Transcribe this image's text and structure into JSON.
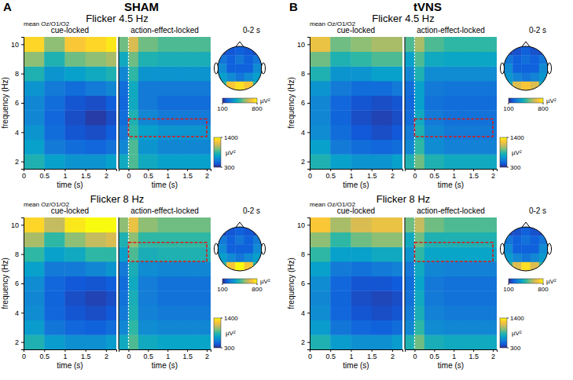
{
  "chart_data": [
    {
      "type": "heatmap",
      "panel": "A",
      "condition": "SHAM",
      "title": "Flicker 4.5 Hz",
      "channel_label": "mean Oz/O1/O2",
      "y_label": "frequency (Hz)",
      "ylim": [
        1.5,
        10.5
      ],
      "yticks": [
        2,
        4,
        6,
        8,
        10
      ],
      "frequencies": [
        2,
        3,
        4,
        5,
        6,
        7,
        8,
        9,
        10
      ],
      "cue": {
        "title": "cue-locked",
        "x_label": "time (s)",
        "xlim": [
          0,
          2.25
        ],
        "xticks": [
          0,
          0.5,
          1,
          1.5,
          2
        ],
        "x_edges": [
          0,
          0.5,
          1,
          1.5,
          2,
          2.25
        ],
        "z": [
          [
            800,
            700,
            650,
            650,
            700
          ],
          [
            700,
            550,
            500,
            480,
            520
          ],
          [
            650,
            500,
            420,
            400,
            450
          ],
          [
            600,
            480,
            400,
            350,
            400
          ],
          [
            600,
            500,
            420,
            400,
            450
          ],
          [
            650,
            550,
            500,
            550,
            600
          ],
          [
            800,
            650,
            700,
            750,
            800
          ],
          [
            1000,
            800,
            950,
            1000,
            1050
          ],
          [
            1300,
            1000,
            1250,
            1300,
            1350
          ]
        ]
      },
      "action": {
        "title": "action-effect-locked",
        "x_label": "time (s)",
        "xlim": [
          -0.25,
          2.1
        ],
        "xticks": [
          0,
          0.5,
          1,
          1.5,
          2
        ],
        "x_edges": [
          -0.25,
          0,
          0.25,
          0.75,
          1.25,
          1.75,
          2.1
        ],
        "onset": 0,
        "z": [
          [
            750,
            900,
            750,
            700,
            700,
            700
          ],
          [
            600,
            900,
            650,
            600,
            600,
            600
          ],
          [
            550,
            850,
            700,
            650,
            650,
            650
          ],
          [
            500,
            800,
            600,
            550,
            550,
            550
          ],
          [
            480,
            750,
            550,
            500,
            500,
            500
          ],
          [
            500,
            750,
            550,
            550,
            550,
            550
          ],
          [
            600,
            850,
            650,
            650,
            650,
            650
          ],
          [
            750,
            950,
            800,
            780,
            780,
            780
          ],
          [
            950,
            1150,
            950,
            900,
            900,
            900
          ]
        ],
        "roi": {
          "x": [
            0,
            2
          ],
          "y": [
            3.7,
            4.9
          ]
        }
      },
      "colorbar": {
        "range": [
          300,
          1400
        ],
        "ticks": [
          300,
          1400
        ],
        "label": "µV²"
      },
      "topo": {
        "title": "0-2 s",
        "z": [
          [
            150,
            180,
            200,
            180,
            150
          ],
          [
            250,
            200,
            250,
            200,
            250
          ],
          [
            300,
            200,
            200,
            200,
            300
          ],
          [
            350,
            300,
            250,
            300,
            350
          ],
          [
            450,
            700,
            750,
            700,
            450
          ]
        ],
        "colorbar": {
          "range": [
            100,
            800
          ],
          "ticks": [
            100,
            800
          ],
          "label": "µV²"
        }
      }
    },
    {
      "type": "heatmap",
      "panel": "B",
      "condition": "tVNS",
      "title": "Flicker 4.5 Hz",
      "channel_label": "mean Oz/O1/O2",
      "y_label": "frequency (Hz)",
      "ylim": [
        1.5,
        10.5
      ],
      "yticks": [
        2,
        4,
        6,
        8,
        10
      ],
      "frequencies": [
        2,
        3,
        4,
        5,
        6,
        7,
        8,
        9,
        10
      ],
      "cue": {
        "title": "cue-locked",
        "x_label": "time (s)",
        "xlim": [
          0,
          2.25
        ],
        "xticks": [
          0,
          0.5,
          1,
          1.5,
          2
        ],
        "x_edges": [
          0,
          0.5,
          1,
          1.5,
          2,
          2.25
        ],
        "z": [
          [
            800,
            700,
            650,
            650,
            700
          ],
          [
            700,
            550,
            500,
            480,
            500
          ],
          [
            620,
            500,
            430,
            400,
            430
          ],
          [
            600,
            470,
            400,
            370,
            400
          ],
          [
            600,
            480,
            420,
            400,
            420
          ],
          [
            650,
            550,
            500,
            500,
            550
          ],
          [
            800,
            650,
            650,
            700,
            700
          ],
          [
            950,
            800,
            850,
            900,
            900
          ],
          [
            1200,
            950,
            1000,
            1050,
            1050
          ]
        ]
      },
      "action": {
        "title": "action-effect-locked",
        "x_label": "time (s)",
        "xlim": [
          -0.25,
          2.1
        ],
        "xticks": [
          0,
          0.5,
          1,
          1.5,
          2
        ],
        "x_edges": [
          -0.25,
          0,
          0.25,
          0.75,
          1.25,
          1.75,
          2.1
        ],
        "onset": 0,
        "z": [
          [
            800,
            950,
            800,
            750,
            750,
            750
          ],
          [
            600,
            850,
            620,
            580,
            580,
            580
          ],
          [
            550,
            800,
            600,
            550,
            550,
            550
          ],
          [
            500,
            750,
            550,
            520,
            520,
            520
          ],
          [
            480,
            700,
            520,
            500,
            500,
            500
          ],
          [
            500,
            700,
            550,
            530,
            530,
            530
          ],
          [
            600,
            800,
            620,
            620,
            620,
            620
          ],
          [
            700,
            900,
            750,
            730,
            730,
            730
          ],
          [
            900,
            1050,
            900,
            850,
            850,
            850
          ]
        ],
        "roi": {
          "x": [
            0,
            2
          ],
          "y": [
            3.7,
            4.9
          ]
        }
      },
      "colorbar": {
        "range": [
          300,
          1400
        ],
        "ticks": [
          300,
          1400
        ],
        "label": "µV²"
      },
      "topo": {
        "title": "0-2 s",
        "z": [
          [
            150,
            170,
            200,
            170,
            150
          ],
          [
            250,
            200,
            230,
            200,
            250
          ],
          [
            300,
            200,
            200,
            200,
            300
          ],
          [
            330,
            280,
            250,
            280,
            330
          ],
          [
            400,
            650,
            700,
            650,
            400
          ]
        ],
        "colorbar": {
          "range": [
            100,
            800
          ],
          "ticks": [
            100,
            800
          ],
          "label": "µV²"
        }
      }
    },
    {
      "type": "heatmap",
      "title": "Flicker 8 Hz",
      "channel_label": "mean Oz/O1/O2",
      "y_label": "frequency (Hz)",
      "ylim": [
        1.5,
        10.5
      ],
      "yticks": [
        2,
        4,
        6,
        8,
        10
      ],
      "frequencies": [
        2,
        3,
        4,
        5,
        6,
        7,
        8,
        9,
        10
      ],
      "cue": {
        "title": "cue-locked",
        "x_label": "time (s)",
        "xlim": [
          0,
          2.25
        ],
        "xticks": [
          0,
          0.5,
          1,
          1.5,
          2
        ],
        "x_edges": [
          0,
          0.5,
          1,
          1.5,
          2,
          2.25
        ],
        "z": [
          [
            800,
            680,
            630,
            630,
            680
          ],
          [
            680,
            530,
            480,
            460,
            500
          ],
          [
            620,
            480,
            420,
            400,
            430
          ],
          [
            600,
            470,
            400,
            370,
            400
          ],
          [
            620,
            480,
            430,
            420,
            450
          ],
          [
            700,
            550,
            550,
            600,
            650
          ],
          [
            850,
            700,
            750,
            850,
            850
          ],
          [
            1050,
            850,
            1000,
            1100,
            1150
          ],
          [
            1300,
            1100,
            1350,
            1400,
            1400
          ]
        ]
      },
      "action": {
        "title": "action-effect-locked",
        "x_label": "time (s)",
        "xlim": [
          -0.25,
          2.1
        ],
        "xticks": [
          0,
          0.5,
          1,
          1.5,
          2
        ],
        "x_edges": [
          -0.25,
          0,
          0.25,
          0.75,
          1.25,
          1.75,
          2.1
        ],
        "onset": 0,
        "z": [
          [
            750,
            900,
            750,
            720,
            720,
            720
          ],
          [
            600,
            850,
            620,
            600,
            600,
            600
          ],
          [
            550,
            800,
            580,
            550,
            550,
            550
          ],
          [
            520,
            780,
            560,
            520,
            520,
            520
          ],
          [
            500,
            750,
            560,
            520,
            520,
            520
          ],
          [
            550,
            780,
            620,
            600,
            600,
            600
          ],
          [
            700,
            900,
            780,
            800,
            800,
            800
          ],
          [
            800,
            1000,
            850,
            850,
            850,
            850
          ],
          [
            1000,
            1200,
            1000,
            950,
            950,
            950
          ]
        ],
        "roi": {
          "x": [
            0,
            2
          ],
          "y": [
            7.5,
            8.8
          ]
        }
      },
      "colorbar": {
        "range": [
          300,
          1400
        ],
        "ticks": [
          300,
          1400
        ],
        "label": "µV²"
      },
      "topo": {
        "title": "0-2 s",
        "z": [
          [
            150,
            180,
            200,
            180,
            150
          ],
          [
            260,
            200,
            250,
            200,
            260
          ],
          [
            300,
            200,
            200,
            200,
            300
          ],
          [
            350,
            300,
            250,
            300,
            350
          ],
          [
            450,
            700,
            800,
            700,
            450
          ]
        ],
        "colorbar": {
          "range": [
            100,
            800
          ],
          "ticks": [
            100,
            800
          ],
          "label": "µV²"
        }
      }
    },
    {
      "type": "heatmap",
      "title": "Flicker 8 Hz",
      "channel_label": "mean Oz/O1/O2",
      "y_label": "frequency (Hz)",
      "ylim": [
        1.5,
        10.5
      ],
      "yticks": [
        2,
        4,
        6,
        8,
        10
      ],
      "frequencies": [
        2,
        3,
        4,
        5,
        6,
        7,
        8,
        9,
        10
      ],
      "cue": {
        "title": "cue-locked",
        "x_label": "time (s)",
        "xlim": [
          0,
          2.25
        ],
        "xticks": [
          0,
          0.5,
          1,
          1.5,
          2
        ],
        "x_edges": [
          0,
          0.5,
          1,
          1.5,
          2,
          2.25
        ],
        "z": [
          [
            800,
            680,
            630,
            630,
            680
          ],
          [
            680,
            530,
            480,
            460,
            500
          ],
          [
            620,
            480,
            420,
            400,
            420
          ],
          [
            600,
            470,
            400,
            380,
            400
          ],
          [
            620,
            480,
            420,
            420,
            440
          ],
          [
            700,
            550,
            520,
            550,
            580
          ],
          [
            850,
            700,
            700,
            750,
            750
          ],
          [
            1000,
            850,
            950,
            1000,
            1000
          ],
          [
            1250,
            1050,
            1150,
            1200,
            1200
          ]
        ]
      },
      "action": {
        "title": "action-effect-locked",
        "x_label": "time (s)",
        "xlim": [
          -0.25,
          2.1
        ],
        "xticks": [
          0,
          0.5,
          1,
          1.5,
          2
        ],
        "x_edges": [
          -0.25,
          0,
          0.25,
          0.75,
          1.25,
          1.75,
          2.1
        ],
        "onset": 0,
        "z": [
          [
            800,
            950,
            780,
            750,
            750,
            750
          ],
          [
            600,
            850,
            620,
            600,
            600,
            600
          ],
          [
            550,
            780,
            580,
            550,
            550,
            550
          ],
          [
            520,
            750,
            550,
            520,
            520,
            520
          ],
          [
            500,
            720,
            540,
            520,
            520,
            520
          ],
          [
            540,
            750,
            600,
            580,
            580,
            580
          ],
          [
            650,
            850,
            720,
            720,
            720,
            720
          ],
          [
            750,
            950,
            800,
            800,
            800,
            800
          ],
          [
            950,
            1100,
            950,
            900,
            900,
            900
          ]
        ],
        "roi": {
          "x": [
            0,
            2
          ],
          "y": [
            7.5,
            8.8
          ]
        }
      },
      "colorbar": {
        "range": [
          300,
          1400
        ],
        "ticks": [
          300,
          1400
        ],
        "label": "µV²"
      },
      "topo": {
        "title": "0-2 s",
        "z": [
          [
            150,
            170,
            200,
            170,
            150
          ],
          [
            250,
            200,
            240,
            200,
            250
          ],
          [
            300,
            200,
            200,
            200,
            300
          ],
          [
            340,
            290,
            250,
            290,
            340
          ],
          [
            450,
            650,
            750,
            650,
            450
          ]
        ],
        "colorbar": {
          "range": [
            100,
            800
          ],
          "ticks": [
            100,
            800
          ],
          "label": "µV²"
        }
      }
    }
  ]
}
